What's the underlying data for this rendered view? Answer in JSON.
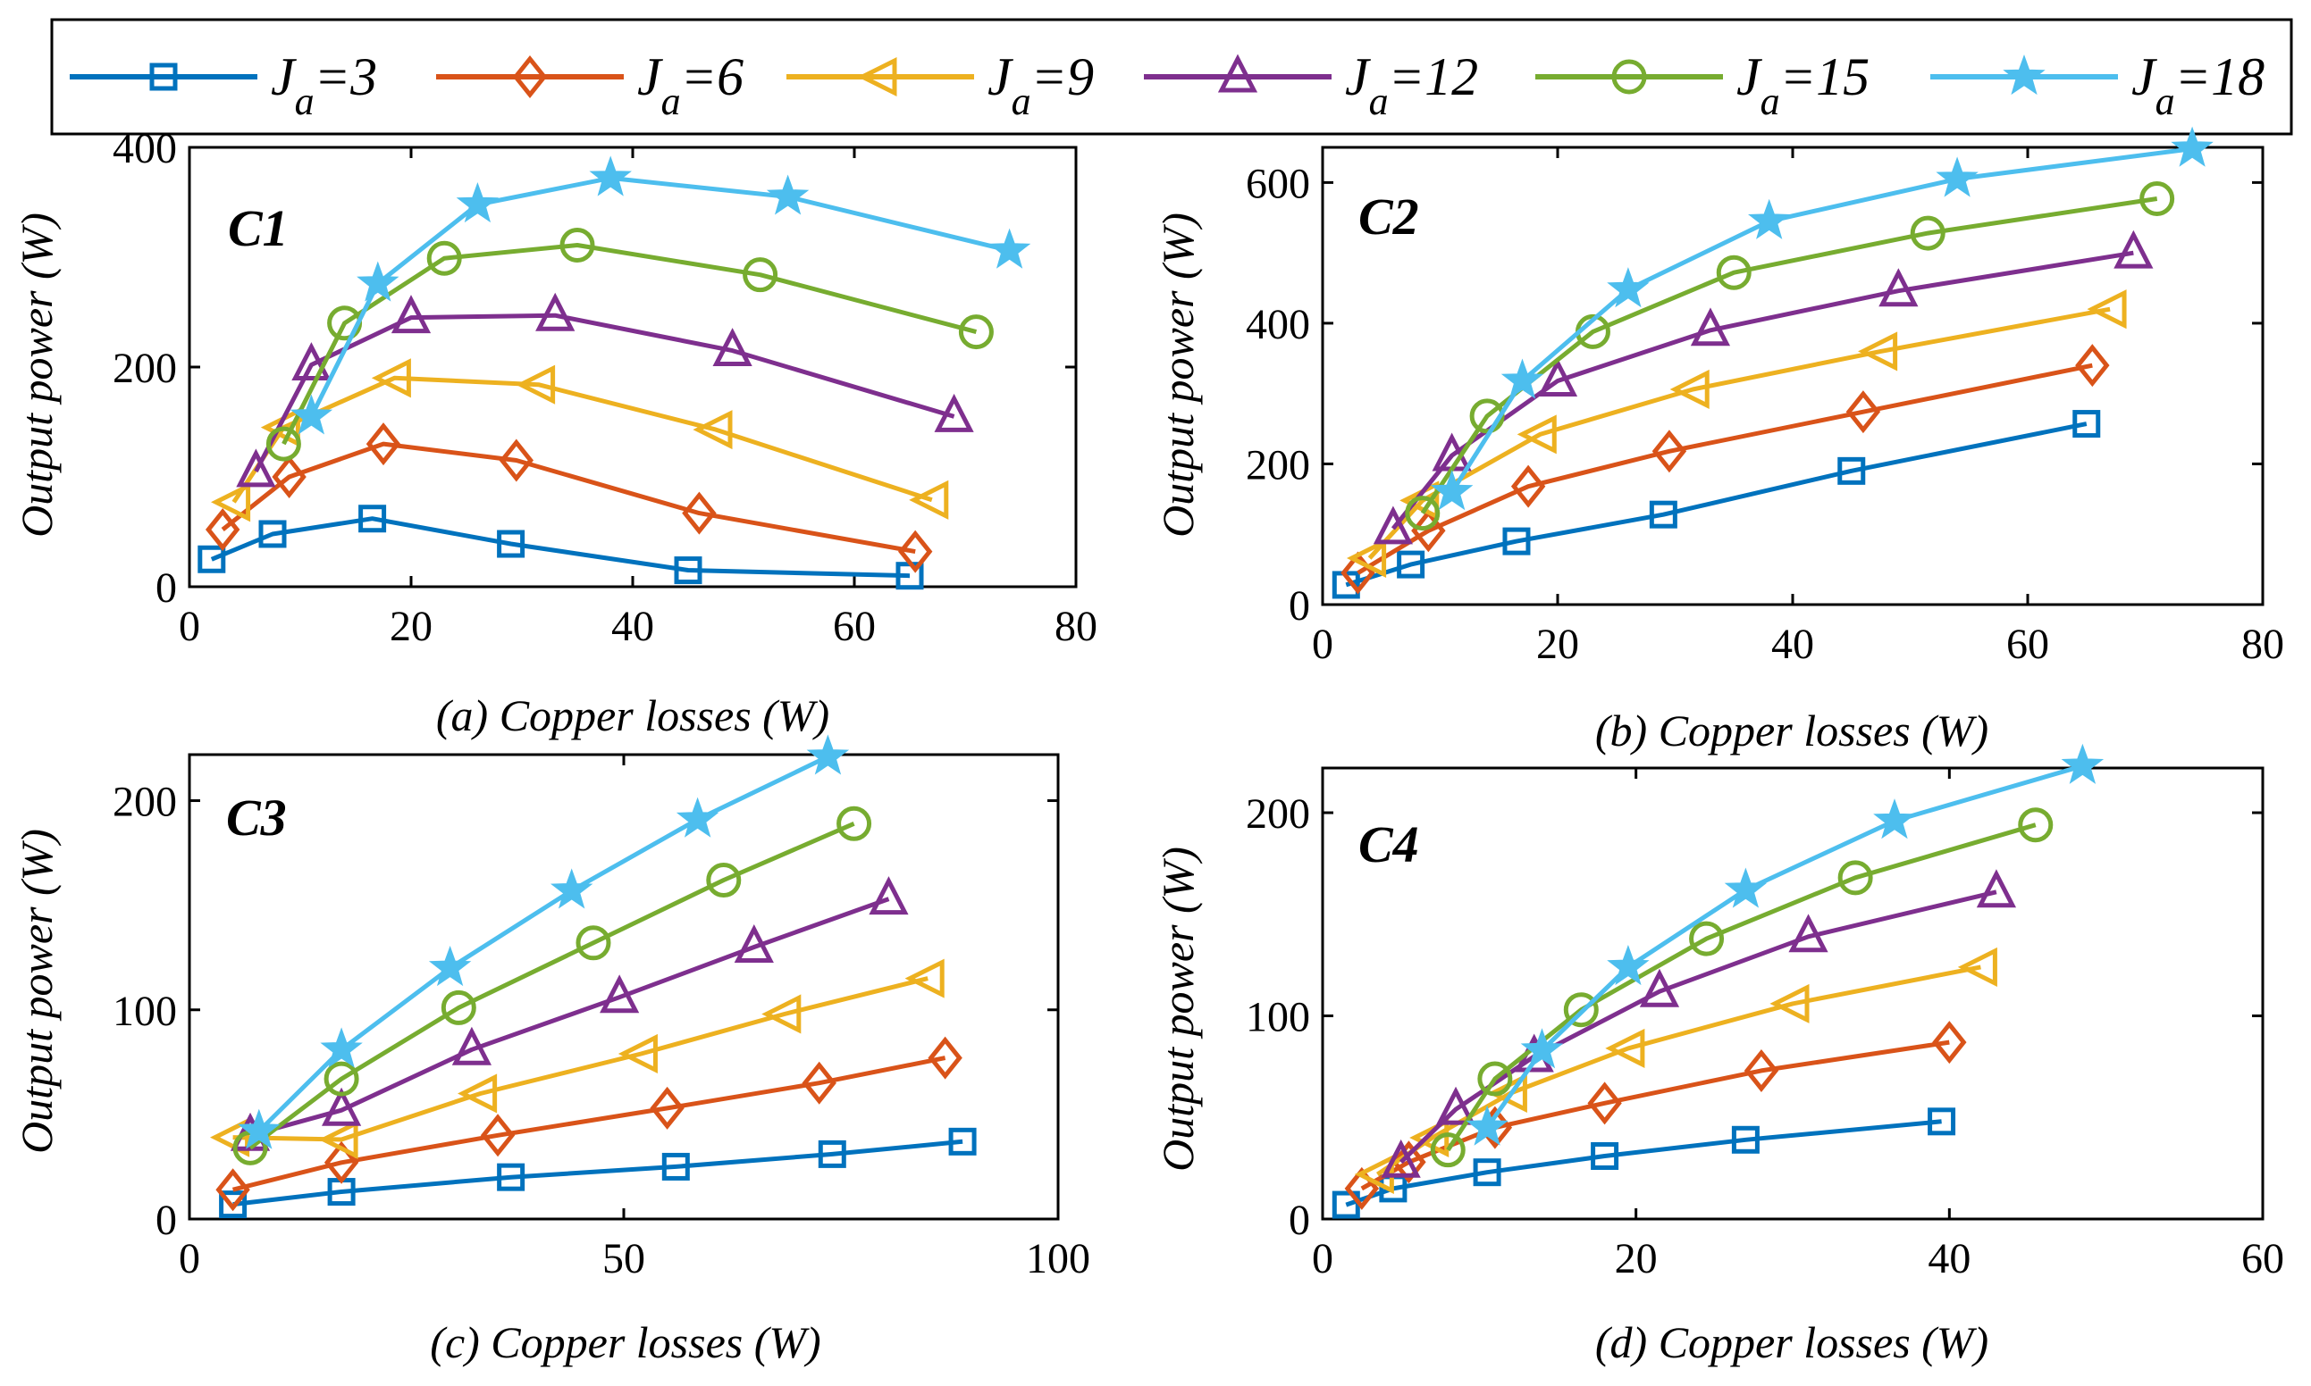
{
  "legend": {
    "entries": [
      {
        "prefix": "J",
        "sub": "a",
        "suffix": "=3"
      },
      {
        "prefix": "J",
        "sub": "a",
        "suffix": "=6"
      },
      {
        "prefix": "J",
        "sub": "a",
        "suffix": "=9"
      },
      {
        "prefix": "J",
        "sub": "a",
        "suffix": "=12"
      },
      {
        "prefix": "J",
        "sub": "a",
        "suffix": "=15"
      },
      {
        "prefix": "J",
        "sub": "a",
        "suffix": "=18"
      }
    ]
  },
  "series_style": [
    {
      "name": "Ja=3",
      "color": "#0072BD",
      "marker": "square"
    },
    {
      "name": "Ja=6",
      "color": "#D95319",
      "marker": "diamond"
    },
    {
      "name": "Ja=9",
      "color": "#EDB120",
      "marker": "triangle-left"
    },
    {
      "name": "Ja=12",
      "color": "#7E2F8E",
      "marker": "triangle-up"
    },
    {
      "name": "Ja=15",
      "color": "#77AC30",
      "marker": "circle"
    },
    {
      "name": "Ja=18",
      "color": "#4DBEEE",
      "marker": "star"
    }
  ],
  "chart_data": [
    {
      "type": "line",
      "title": "C1",
      "xlabel": "(a) Copper losses (W)",
      "ylabel": "Output power (W)",
      "xlim": [
        0,
        80
      ],
      "ylim": [
        0,
        400
      ],
      "xticks": [
        0,
        20,
        40,
        60,
        80
      ],
      "yticks": [
        0,
        200,
        400
      ],
      "series": [
        {
          "name": "Ja=3",
          "x": [
            2,
            7.5,
            16.5,
            29,
            45,
            65
          ],
          "y": [
            25,
            48,
            62,
            39,
            15,
            10
          ]
        },
        {
          "name": "Ja=6",
          "x": [
            3,
            9,
            17.5,
            29.5,
            46,
            65.5
          ],
          "y": [
            52,
            100,
            130,
            115,
            67,
            32
          ]
        },
        {
          "name": "Ja=9",
          "x": [
            4,
            8.5,
            18.5,
            31.5,
            47.5,
            67
          ],
          "y": [
            77,
            145,
            190,
            184,
            143,
            79
          ]
        },
        {
          "name": "Ja=12",
          "x": [
            6,
            11,
            20,
            33,
            49,
            69
          ],
          "y": [
            105,
            202,
            245,
            247,
            215,
            155
          ]
        },
        {
          "name": "Ja=15",
          "x": [
            8.5,
            14,
            23,
            35,
            51.5,
            71
          ],
          "y": [
            130,
            240,
            299,
            311,
            284,
            232
          ]
        },
        {
          "name": "Ja=18",
          "x": [
            11,
            17,
            26,
            38,
            54,
            74
          ],
          "y": [
            155,
            276,
            348,
            372,
            355,
            306
          ]
        }
      ]
    },
    {
      "type": "line",
      "title": "C2",
      "xlabel": "(b) Copper losses (W)",
      "ylabel": "Output power (W)",
      "xlim": [
        0,
        80
      ],
      "ylim": [
        0,
        650
      ],
      "xticks": [
        0,
        20,
        40,
        60,
        80
      ],
      "yticks": [
        0,
        200,
        400,
        600
      ],
      "series": [
        {
          "name": "Ja=3",
          "x": [
            2,
            7.5,
            16.5,
            29,
            45,
            65
          ],
          "y": [
            28,
            57,
            90,
            128,
            190,
            257
          ]
        },
        {
          "name": "Ja=6",
          "x": [
            3,
            9,
            17.5,
            29.5,
            46,
            65.5
          ],
          "y": [
            45,
            105,
            168,
            218,
            274,
            340
          ]
        },
        {
          "name": "Ja=9",
          "x": [
            4,
            8.5,
            18.5,
            31.5,
            47.5,
            67
          ],
          "y": [
            66,
            148,
            242,
            306,
            360,
            420
          ]
        },
        {
          "name": "Ja=12",
          "x": [
            6,
            11,
            20,
            33,
            49,
            69
          ],
          "y": [
            108,
            212,
            318,
            390,
            446,
            500
          ]
        },
        {
          "name": "Ja=15",
          "x": [
            8.5,
            14,
            23,
            35,
            51.5,
            71
          ],
          "y": [
            130,
            268,
            388,
            472,
            528,
            577
          ]
        },
        {
          "name": "Ja=18",
          "x": [
            11,
            17,
            26,
            38,
            54,
            74
          ],
          "y": [
            160,
            318,
            448,
            545,
            605,
            648
          ]
        }
      ]
    },
    {
      "type": "line",
      "title": "C3",
      "xlabel": "(c) Copper losses (W)",
      "ylabel": "Output power (W)",
      "xlim": [
        0,
        100
      ],
      "ylim": [
        0,
        222
      ],
      "xticks": [
        0,
        50,
        100
      ],
      "yticks": [
        0,
        100,
        200
      ],
      "series": [
        {
          "name": "Ja=3",
          "x": [
            5,
            17.5,
            37,
            56,
            74,
            89
          ],
          "y": [
            7,
            13,
            20,
            25,
            31,
            37
          ]
        },
        {
          "name": "Ja=6",
          "x": [
            5,
            17.5,
            35.5,
            55,
            72.5,
            87
          ],
          "y": [
            14,
            27,
            40,
            53,
            65,
            77
          ]
        },
        {
          "name": "Ja=9",
          "x": [
            5,
            17.5,
            33.5,
            52,
            68.5,
            85
          ],
          "y": [
            39,
            38,
            60,
            79,
            98,
            115
          ]
        },
        {
          "name": "Ja=12",
          "x": [
            7,
            17.5,
            32.5,
            49.5,
            65,
            80.5
          ],
          "y": [
            40,
            52,
            81,
            106,
            130,
            153
          ]
        },
        {
          "name": "Ja=15",
          "x": [
            7,
            17.5,
            31,
            46.5,
            61.5,
            76.5
          ],
          "y": [
            34,
            67,
            101,
            132,
            162,
            189
          ]
        },
        {
          "name": "Ja=18",
          "x": [
            8,
            17.5,
            30,
            44,
            58.5,
            73.5
          ],
          "y": [
            42,
            81,
            120,
            157,
            191,
            221
          ]
        }
      ]
    },
    {
      "type": "line",
      "title": "C4",
      "xlabel": "(d) Copper losses (W)",
      "ylabel": "Output power (W)",
      "xlim": [
        0,
        60
      ],
      "ylim": [
        0,
        222
      ],
      "xticks": [
        0,
        20,
        40,
        60
      ],
      "yticks": [
        0,
        100,
        200
      ],
      "series": [
        {
          "name": "Ja=3",
          "x": [
            1.5,
            4.5,
            10.5,
            18,
            27,
            39.5
          ],
          "y": [
            7,
            15,
            23,
            31,
            39,
            48
          ]
        },
        {
          "name": "Ja=6",
          "x": [
            2.5,
            5.5,
            11,
            18,
            28,
            40
          ],
          "y": [
            15,
            28,
            45,
            57,
            73,
            87
          ]
        },
        {
          "name": "Ja=9",
          "x": [
            3.5,
            7,
            12,
            19.5,
            30,
            42
          ],
          "y": [
            22,
            40,
            62,
            84,
            106,
            124
          ]
        },
        {
          "name": "Ja=12",
          "x": [
            5,
            8.5,
            13.5,
            21.5,
            31,
            43
          ],
          "y": [
            28,
            54,
            80,
            112,
            139,
            161
          ]
        },
        {
          "name": "Ja=15",
          "x": [
            8,
            11,
            16.5,
            24.5,
            34,
            45.5
          ],
          "y": [
            34,
            69,
            103,
            138,
            168,
            194
          ]
        },
        {
          "name": "Ja=18",
          "x": [
            10.5,
            14,
            19.5,
            27,
            36.5,
            48.5
          ],
          "y": [
            45,
            83,
            124,
            162,
            196,
            223
          ]
        }
      ]
    }
  ]
}
